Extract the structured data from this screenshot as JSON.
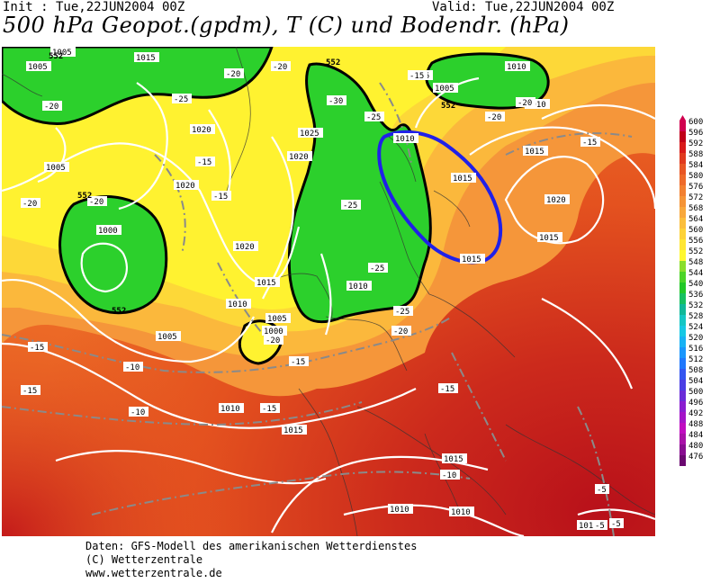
{
  "header": {
    "init": "Init : Tue,22JUN2004 00Z",
    "valid": "Valid: Tue,22JUN2004 00Z",
    "title": "500 hPa Geopot.(gpdm), T (C) und Bodendr. (hPa)"
  },
  "legend": {
    "levels": [
      "600",
      "596",
      "592",
      "588",
      "584",
      "580",
      "576",
      "572",
      "568",
      "564",
      "560",
      "556",
      "552",
      "548",
      "544",
      "540",
      "536",
      "532",
      "528",
      "524",
      "520",
      "516",
      "512",
      "508",
      "504",
      "500",
      "496",
      "492",
      "488",
      "484",
      "480",
      "476"
    ],
    "colors": [
      "#d0004e",
      "#c00018",
      "#d81a1a",
      "#e03a1e",
      "#e85624",
      "#ee6a2a",
      "#f28030",
      "#f59436",
      "#f8a83c",
      "#fbbe3c",
      "#fdd238",
      "#ffe634",
      "#fff830",
      "#8ade2c",
      "#4cd428",
      "#22c828",
      "#16c060",
      "#10b898",
      "#14c6c4",
      "#16c8e4",
      "#18b2f4",
      "#1a96fc",
      "#2078fc",
      "#3456f0",
      "#4a3ee4",
      "#6a2cd8",
      "#8a1ed0",
      "#a414c8",
      "#c00cc0",
      "#a810a8",
      "#880c90",
      "#6a0870"
    ]
  },
  "map_labels": {
    "pressure": [
      {
        "t": "1005"
      },
      {
        "t": "1015"
      },
      {
        "t": "1005"
      },
      {
        "t": "1020"
      },
      {
        "t": "1025"
      },
      {
        "t": "1020"
      },
      {
        "t": "1005"
      },
      {
        "t": "1020"
      },
      {
        "t": "1000"
      },
      {
        "t": "1020"
      },
      {
        "t": "1015"
      },
      {
        "t": "1010"
      },
      {
        "t": "1005"
      },
      {
        "t": "1005"
      },
      {
        "t": "1000"
      },
      {
        "t": "1010"
      },
      {
        "t": "1015"
      },
      {
        "t": "1010"
      },
      {
        "t": "1015"
      },
      {
        "t": "1010"
      },
      {
        "t": "1005"
      },
      {
        "t": "1010"
      },
      {
        "t": "1015"
      },
      {
        "t": "1020"
      },
      {
        "t": "1015"
      },
      {
        "t": "1015"
      },
      {
        "t": "1010"
      },
      {
        "t": "1010"
      },
      {
        "t": "1015"
      },
      {
        "t": "1010"
      },
      {
        "t": "1015"
      }
    ],
    "temperature": [
      {
        "t": "-20"
      },
      {
        "t": "-25"
      },
      {
        "t": "-20"
      },
      {
        "t": "-15"
      },
      {
        "t": "-15"
      },
      {
        "t": "-20"
      },
      {
        "t": "-30"
      },
      {
        "t": "-25"
      },
      {
        "t": "-25"
      },
      {
        "t": "-25"
      },
      {
        "t": "-15"
      },
      {
        "t": "-20"
      },
      {
        "t": "-20"
      },
      {
        "t": "-15"
      },
      {
        "t": "-15"
      },
      {
        "t": "-25"
      },
      {
        "t": "-20"
      },
      {
        "t": "-20"
      },
      {
        "t": "-15"
      },
      {
        "t": "-15"
      },
      {
        "t": "-10"
      },
      {
        "t": "-10"
      },
      {
        "t": "-15"
      },
      {
        "t": "-10"
      },
      {
        "t": "-5"
      },
      {
        "t": "-5"
      },
      {
        "t": "-5"
      },
      {
        "t": "-20"
      },
      {
        "t": "-15"
      },
      {
        "t": "-15"
      },
      {
        "t": "-20"
      }
    ],
    "geopotential": [
      {
        "t": "552"
      },
      {
        "t": "552"
      },
      {
        "t": "552"
      },
      {
        "t": "552"
      },
      {
        "t": "552"
      }
    ]
  },
  "footer": {
    "line1": "Daten: GFS-Modell des amerikanischen Wetterdienstes",
    "line2": "(C) Wetterzentrale",
    "line3": "www.wetterzentrale.de"
  }
}
